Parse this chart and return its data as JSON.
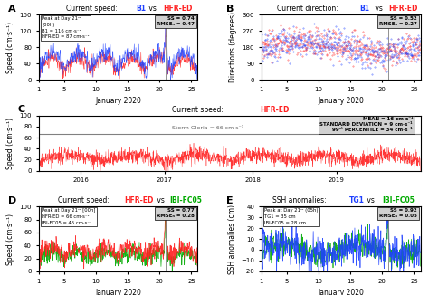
{
  "panel_A": {
    "title_prefix": "Current speed: ",
    "title_b1": "B1",
    "title_vs": " vs ",
    "title_hfr": "HFR-ED",
    "title_color_b1": "#1E40FF",
    "title_color_hfr": "#FF2020",
    "ylabel": "Speed (cm·s⁻¹)",
    "xlabel": "January 2020",
    "xlim": [
      1,
      26
    ],
    "ylim": [
      0,
      160
    ],
    "yticks": [
      0,
      40,
      80,
      120,
      160
    ],
    "vline_x": 21
  },
  "panel_B": {
    "title_prefix": "Current direction: ",
    "title_b1": "B1",
    "title_vs": " vs ",
    "title_hfr": "HFR-ED",
    "title_color_b1": "#1E40FF",
    "title_color_hfr": "#FF2020",
    "ylabel": "Directions (degrees)",
    "xlabel": "January 2020",
    "xlim": [
      1,
      26
    ],
    "ylim": [
      0,
      360
    ],
    "yticks": [
      0,
      90,
      180,
      270,
      360
    ],
    "vline_x": 21
  },
  "panel_C": {
    "title_hfr": "HFR-ED",
    "title_color_hfr": "#FF2020",
    "ylabel": "Speed (cm·s⁻¹)",
    "xtick_labels": [
      "2016",
      "2017",
      "2018",
      "2019"
    ],
    "ylim": [
      0,
      100
    ],
    "yticks": [
      0,
      20,
      40,
      60,
      80,
      100
    ],
    "hline_y": 66
  },
  "panel_D": {
    "title_hfr": "HFR-ED",
    "title_vs": " vs ",
    "title_ibi": "IBI-FC05",
    "title_color_hfr": "#FF2020",
    "title_color_ibi": "#00AA00",
    "ylabel": "Speed (cm·s⁻¹)",
    "xlabel": "January 2020",
    "xlim": [
      1,
      26
    ],
    "ylim": [
      0,
      100
    ],
    "yticks": [
      0,
      20,
      40,
      60,
      80,
      100
    ],
    "vline_x": 21
  },
  "panel_E": {
    "title_tg1": "TG1",
    "title_vs": " vs ",
    "title_ibi": "IBI-FC05",
    "title_color_tg1": "#1E40FF",
    "title_color_ibi": "#00AA00",
    "ylabel": "SSH anomalies (cm)",
    "xlabel": "January 2020",
    "xlim": [
      1,
      26
    ],
    "ylim": [
      -20,
      40
    ],
    "yticks": [
      -20,
      -10,
      0,
      10,
      20,
      30,
      40
    ],
    "vline_x": 21
  },
  "label_fontsize": 5.5,
  "title_fontsize": 6,
  "tick_fontsize": 5,
  "panel_label_fontsize": 8
}
